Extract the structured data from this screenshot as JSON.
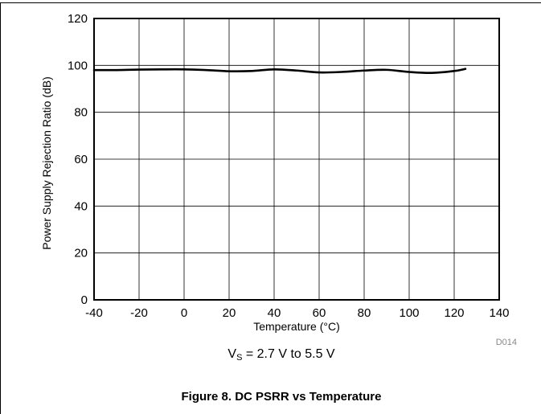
{
  "chart_data": {
    "type": "line",
    "xlabel": "Temperature (°C)",
    "ylabel": "Power Supply Rejection Ratio (dB)",
    "xlim": [
      -40,
      140
    ],
    "ylim": [
      0,
      120
    ],
    "x_ticks": [
      "-40",
      "-20",
      "0",
      "20",
      "40",
      "60",
      "80",
      "100",
      "120",
      "140"
    ],
    "y_ticks": [
      "0",
      "20",
      "40",
      "60",
      "80",
      "100",
      "120"
    ],
    "grid": true,
    "series": [
      {
        "color": "#000000",
        "x": [
          -40,
          -30,
          -20,
          -10,
          0,
          10,
          20,
          30,
          40,
          50,
          60,
          70,
          80,
          90,
          100,
          110,
          120,
          125
        ],
        "y": [
          98,
          98,
          98.2,
          98.3,
          98.3,
          98,
          97.5,
          97.6,
          98.3,
          97.8,
          97,
          97.2,
          97.8,
          98.1,
          97.2,
          96.8,
          97.6,
          98.5
        ]
      }
    ],
    "code": "D014"
  },
  "condition": {
    "base": "V",
    "subscript": "S",
    "rest": " = 2.7 V to 5.5 V"
  },
  "caption": "Figure 8. DC PSRR vs Temperature"
}
